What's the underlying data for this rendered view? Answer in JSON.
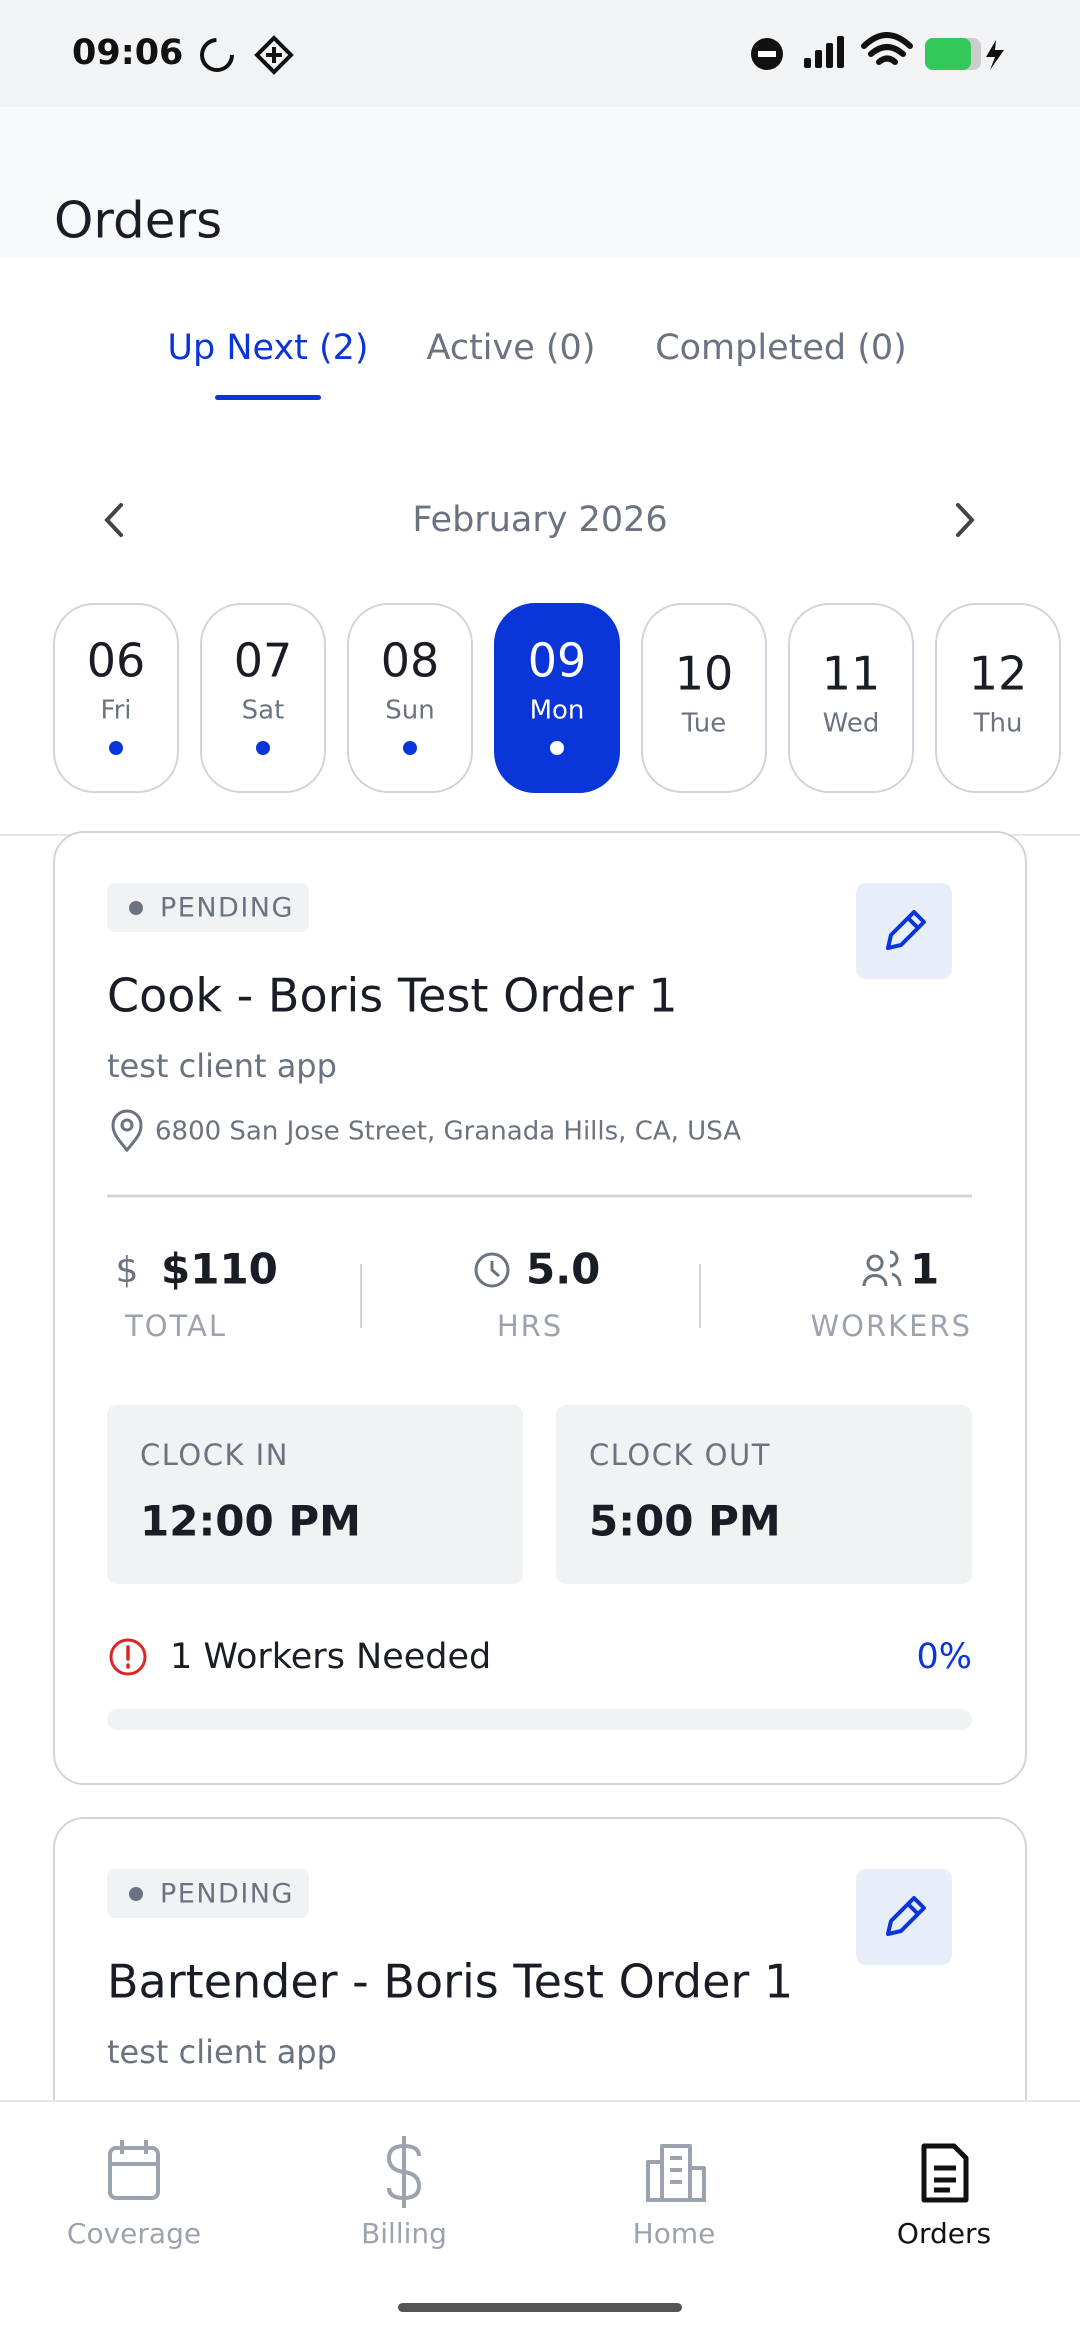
{
  "status_bar": {
    "time": "09:06"
  },
  "header": {
    "title": "Orders"
  },
  "tabs": [
    {
      "label": "Up Next (2)",
      "active": true
    },
    {
      "label": "Active (0)",
      "active": false
    },
    {
      "label": "Completed (0)",
      "active": false
    }
  ],
  "calendar": {
    "month": "February 2026",
    "days": [
      {
        "date": "06",
        "weekday": "Fri",
        "has_orders": true,
        "selected": false
      },
      {
        "date": "07",
        "weekday": "Sat",
        "has_orders": true,
        "selected": false
      },
      {
        "date": "08",
        "weekday": "Sun",
        "has_orders": true,
        "selected": false
      },
      {
        "date": "09",
        "weekday": "Mon",
        "has_orders": true,
        "selected": true
      },
      {
        "date": "10",
        "weekday": "Tue",
        "has_orders": false,
        "selected": false
      },
      {
        "date": "11",
        "weekday": "Wed",
        "has_orders": false,
        "selected": false
      },
      {
        "date": "12",
        "weekday": "Thu",
        "has_orders": false,
        "selected": false
      }
    ]
  },
  "orders": [
    {
      "status": "PENDING",
      "title": "Cook - Boris Test Order 1",
      "client": "test client app",
      "address": "6800 San Jose Street, Granada Hills, CA, USA",
      "total": "$110",
      "total_label": "TOTAL",
      "hours": "5.0",
      "hours_label": "HRS",
      "workers": "1",
      "workers_label": "WORKERS",
      "clock_in_label": "CLOCK IN",
      "clock_in": "12:00 PM",
      "clock_out_label": "CLOCK OUT",
      "clock_out": "5:00 PM",
      "needed": "1 Workers Needed",
      "progress": 0,
      "progress_label": "0%"
    },
    {
      "status": "PENDING",
      "title": "Bartender - Boris Test Order 1",
      "client": "test client app"
    }
  ],
  "nav": [
    {
      "label": "Coverage",
      "active": false
    },
    {
      "label": "Billing",
      "active": false
    },
    {
      "label": "Home",
      "active": false
    },
    {
      "label": "Orders",
      "active": true
    }
  ]
}
